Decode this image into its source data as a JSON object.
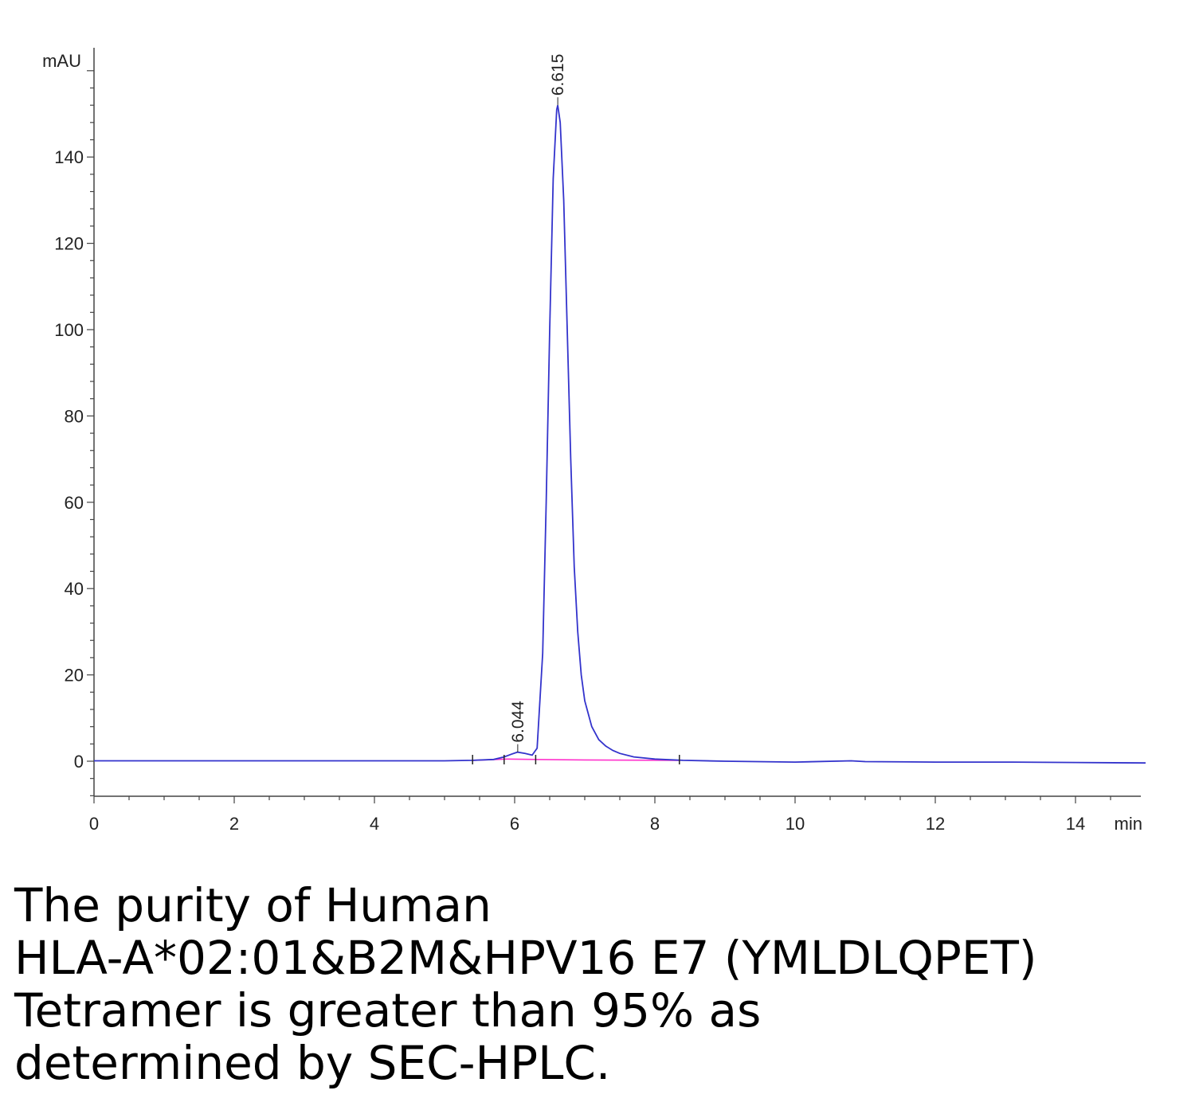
{
  "chart_data": {
    "type": "line",
    "ylabel": "mAU",
    "xlabel": "min",
    "xlim": [
      0,
      15
    ],
    "ylim": [
      -8,
      160
    ],
    "x_ticks": [
      "0",
      "2",
      "4",
      "6",
      "8",
      "10",
      "12",
      "14"
    ],
    "y_ticks": [
      "0",
      "20",
      "40",
      "60",
      "80",
      "100",
      "120",
      "140"
    ],
    "grid": false,
    "series": [
      {
        "color": "#3333cc",
        "x": [
          0,
          1,
          2,
          3,
          4,
          5,
          5.4,
          5.7,
          5.85,
          5.95,
          6.04,
          6.15,
          6.25,
          6.32,
          6.4,
          6.45,
          6.5,
          6.55,
          6.6,
          6.615,
          6.65,
          6.7,
          6.75,
          6.8,
          6.85,
          6.9,
          6.95,
          7.0,
          7.1,
          7.2,
          7.3,
          7.4,
          7.5,
          7.7,
          8.0,
          8.4,
          9.0,
          10.0,
          10.8,
          11.0,
          12.0,
          13.0,
          14.0,
          15.0
        ],
        "y": [
          0.1,
          0.1,
          0.1,
          0.1,
          0.1,
          0.1,
          0.2,
          0.4,
          1.0,
          1.6,
          2.1,
          1.8,
          1.4,
          3.0,
          25.0,
          60.0,
          100.0,
          135.0,
          151.0,
          152.0,
          148.0,
          130.0,
          100.0,
          70.0,
          45.0,
          30.0,
          20.0,
          14.0,
          8.0,
          5.0,
          3.5,
          2.5,
          1.8,
          1.0,
          0.5,
          0.2,
          0.0,
          -0.2,
          0.1,
          -0.1,
          -0.2,
          -0.2,
          -0.3,
          -0.4
        ]
      },
      {
        "color": "#ff33cc",
        "x": [
          5.4,
          5.9,
          6.3,
          7.0,
          8.35
        ],
        "y": [
          0.2,
          0.5,
          0.4,
          0.3,
          0.2
        ]
      }
    ],
    "annotations": [
      {
        "text": "6.044",
        "x": 6.044,
        "y": 2.1
      },
      {
        "text": "6.615",
        "x": 6.615,
        "y": 152.0
      }
    ]
  },
  "caption": {
    "line1": "The purity of Human",
    "line2": "HLA-A*02:01&B2M&HPV16 E7 (YMLDLQPET)",
    "line3": "Tetramer is greater than 95% as",
    "line4": "determined by SEC-HPLC."
  }
}
